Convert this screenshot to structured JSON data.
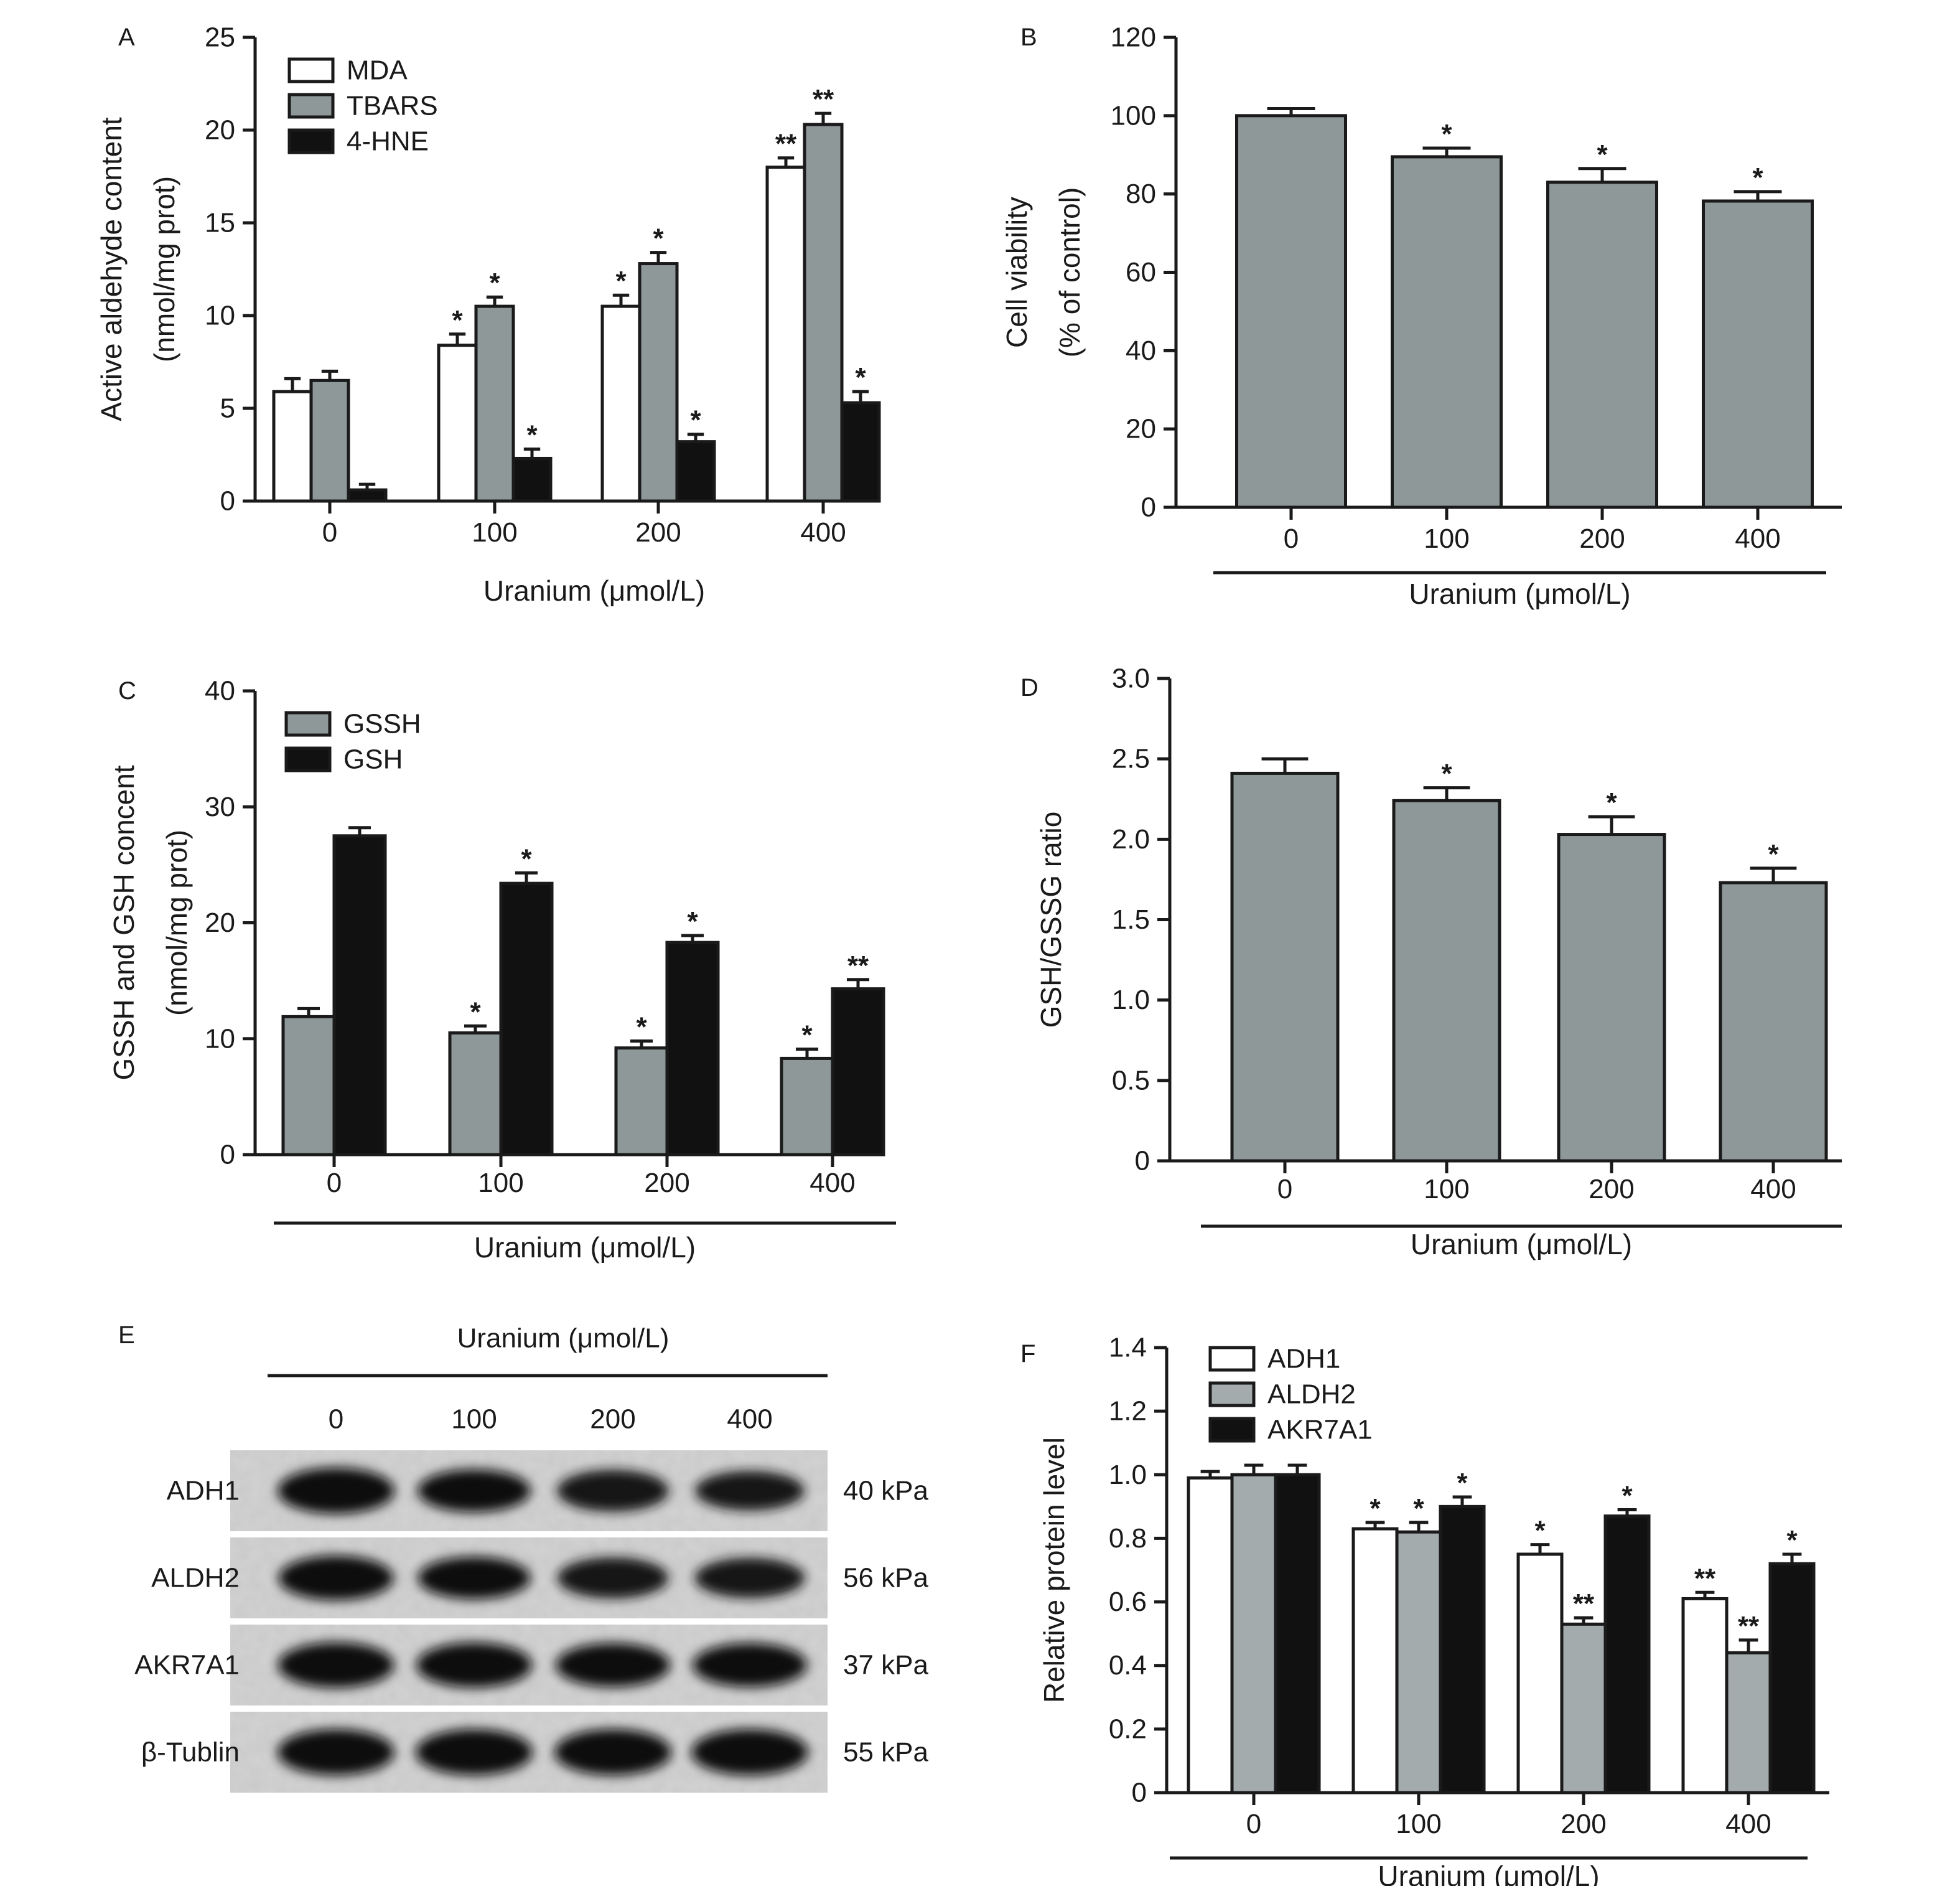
{
  "figure": {
    "blot": {
      "letter": "E",
      "header": "Uranium (μmol/L)",
      "lanes": [
        "0",
        "100",
        "200",
        "400"
      ],
      "rows": [
        {
          "protein": "ADH1",
          "weight": "40 kPa",
          "intensity": [
            0.95,
            0.8,
            0.75,
            0.65
          ]
        },
        {
          "protein": "ALDH2",
          "weight": "56 kPa",
          "intensity": [
            0.88,
            0.78,
            0.72,
            0.68
          ]
        },
        {
          "protein": "AKR7A1",
          "weight": "37 kPa",
          "intensity": [
            0.92,
            0.9,
            0.85,
            0.85
          ]
        },
        {
          "protein": "β-Tublin",
          "weight": "55 kPa",
          "intensity": [
            0.95,
            0.95,
            0.95,
            0.95
          ]
        }
      ]
    }
  },
  "chart_data": [
    {
      "letter": "A",
      "type": "bar",
      "categories": [
        "0",
        "100",
        "200",
        "400"
      ],
      "xlabel": "Uranium (μmol/L)",
      "ylabel": [
        "Active aldehyde content",
        "(nmol/mg prot)"
      ],
      "ylim": [
        0,
        25
      ],
      "yticks": [
        0,
        5,
        10,
        15,
        20,
        25
      ],
      "ytick_labels": [
        "0",
        "5",
        "10",
        "15",
        "20",
        "25"
      ],
      "legend": "top-left",
      "underline": false,
      "series": [
        {
          "name": "MDA",
          "color": "#ffffff",
          "values": [
            5.9,
            8.4,
            10.5,
            18.0
          ],
          "errors": [
            0.7,
            0.6,
            0.6,
            0.5
          ],
          "marks": [
            "",
            "*",
            "*",
            "**"
          ]
        },
        {
          "name": "TBARS",
          "color": "#8f9899",
          "values": [
            6.5,
            10.5,
            12.8,
            20.3
          ],
          "errors": [
            0.5,
            0.5,
            0.6,
            0.6
          ],
          "marks": [
            "",
            "*",
            "*",
            "**"
          ]
        },
        {
          "name": "4-HNE",
          "color": "#111111",
          "values": [
            0.6,
            2.3,
            3.2,
            5.3
          ],
          "errors": [
            0.3,
            0.5,
            0.4,
            0.6
          ],
          "marks": [
            "",
            "*",
            "*",
            "*"
          ]
        }
      ]
    },
    {
      "letter": "B",
      "type": "bar",
      "categories": [
        "0",
        "100",
        "200",
        "400"
      ],
      "xlabel": "Uranium (μmol/L)",
      "ylabel": [
        "Cell viability",
        "(% of control)"
      ],
      "ylim": [
        0,
        120
      ],
      "yticks": [
        0,
        20,
        40,
        60,
        80,
        100,
        120
      ],
      "ytick_labels": [
        "0",
        "20",
        "40",
        "60",
        "80",
        "100",
        "120"
      ],
      "legend": "none",
      "underline": true,
      "series": [
        {
          "name": "",
          "color": "#8f9899",
          "values": [
            100,
            89.5,
            83,
            78.2
          ],
          "errors": [
            1.8,
            2.2,
            3.5,
            2.4
          ],
          "marks": [
            "",
            "*",
            "*",
            "*"
          ]
        }
      ]
    },
    {
      "letter": "C",
      "type": "bar",
      "categories": [
        "0",
        "100",
        "200",
        "400"
      ],
      "xlabel": "Uranium (μmol/L)",
      "ylabel": [
        "GSSH and GSH concent",
        "(nmol/mg prot)"
      ],
      "ylim": [
        0,
        40
      ],
      "yticks": [
        0,
        10,
        20,
        30,
        40
      ],
      "ytick_labels": [
        "0",
        "10",
        "20",
        "30",
        "40"
      ],
      "legend": "top-left",
      "underline": true,
      "series": [
        {
          "name": "GSSH",
          "color": "#8f9899",
          "values": [
            11.9,
            10.5,
            9.2,
            8.3
          ],
          "errors": [
            0.7,
            0.6,
            0.6,
            0.8
          ],
          "marks": [
            "",
            "*",
            "*",
            "*"
          ]
        },
        {
          "name": "GSH",
          "color": "#111111",
          "values": [
            27.5,
            23.4,
            18.3,
            14.3
          ],
          "errors": [
            0.7,
            0.9,
            0.6,
            0.8
          ],
          "marks": [
            "",
            "*",
            "*",
            "**"
          ]
        }
      ]
    },
    {
      "letter": "D",
      "type": "bar",
      "categories": [
        "0",
        "100",
        "200",
        "400"
      ],
      "xlabel": "Uranium (μmol/L)",
      "ylabel": [
        "GSH/GSSG ratio"
      ],
      "ylim": [
        0,
        3.0
      ],
      "yticks": [
        0,
        0.5,
        1.0,
        1.5,
        2.0,
        2.5,
        3.0
      ],
      "ytick_labels": [
        "0",
        "0.5",
        "1.0",
        "1.5",
        "2.0",
        "2.5",
        "3.0"
      ],
      "legend": "none",
      "underline": true,
      "series": [
        {
          "name": "",
          "color": "#8f9899",
          "values": [
            2.41,
            2.24,
            2.03,
            1.73
          ],
          "errors": [
            0.09,
            0.08,
            0.11,
            0.09
          ],
          "marks": [
            "",
            "*",
            "*",
            "*"
          ]
        }
      ]
    },
    {
      "letter": "F",
      "type": "bar",
      "categories": [
        "0",
        "100",
        "200",
        "400"
      ],
      "xlabel": "Uranium (μmol/L)",
      "ylabel": [
        "Relative protein level"
      ],
      "ylim": [
        0,
        1.4
      ],
      "yticks": [
        0,
        0.2,
        0.4,
        0.6,
        0.8,
        1.0,
        1.2,
        1.4
      ],
      "ytick_labels": [
        "0",
        "0.2",
        "0.4",
        "0.6",
        "0.8",
        "1.0",
        "1.2",
        "1.4"
      ],
      "legend": "top-left",
      "underline": true,
      "series": [
        {
          "name": "ADH1",
          "color": "#ffffff",
          "values": [
            0.99,
            0.83,
            0.75,
            0.61
          ],
          "errors": [
            0.02,
            0.02,
            0.03,
            0.02
          ],
          "marks": [
            "",
            "*",
            "*",
            "**"
          ]
        },
        {
          "name": "ALDH2",
          "color": "#a3abac",
          "values": [
            1.0,
            0.82,
            0.53,
            0.44
          ],
          "errors": [
            0.03,
            0.03,
            0.02,
            0.04
          ],
          "marks": [
            "",
            "*",
            "**",
            "**"
          ]
        },
        {
          "name": "AKR7A1",
          "color": "#111111",
          "values": [
            1.0,
            0.9,
            0.87,
            0.72
          ],
          "errors": [
            0.03,
            0.03,
            0.02,
            0.03
          ],
          "marks": [
            "",
            "*",
            "*",
            "*"
          ]
        }
      ]
    }
  ]
}
